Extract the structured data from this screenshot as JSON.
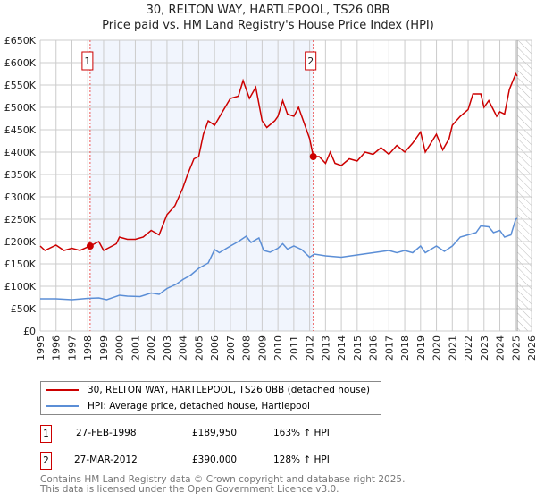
{
  "chart_data": {
    "type": "line",
    "title": "30, RELTON WAY, HARTLEPOOL, TS26 0BB",
    "subtitle": "Price paid vs. HM Land Registry's House Price Index (HPI)",
    "xlim": [
      1995,
      2026
    ],
    "ylim": [
      0,
      650000
    ],
    "y_ticks": [
      {
        "v": 0,
        "label": "£0"
      },
      {
        "v": 50000,
        "label": "£50K"
      },
      {
        "v": 100000,
        "label": "£100K"
      },
      {
        "v": 150000,
        "label": "£150K"
      },
      {
        "v": 200000,
        "label": "£200K"
      },
      {
        "v": 250000,
        "label": "£250K"
      },
      {
        "v": 300000,
        "label": "£300K"
      },
      {
        "v": 350000,
        "label": "£350K"
      },
      {
        "v": 400000,
        "label": "£400K"
      },
      {
        "v": 450000,
        "label": "£450K"
      },
      {
        "v": 500000,
        "label": "£500K"
      },
      {
        "v": 550000,
        "label": "£550K"
      },
      {
        "v": 600000,
        "label": "£600K"
      },
      {
        "v": 650000,
        "label": "£650K"
      }
    ],
    "x_ticks": [
      "1995",
      "1996",
      "1997",
      "1998",
      "1999",
      "2000",
      "2001",
      "2002",
      "2003",
      "2004",
      "2005",
      "2006",
      "2007",
      "2008",
      "2009",
      "2010",
      "2011",
      "2012",
      "2013",
      "2014",
      "2015",
      "2016",
      "2017",
      "2018",
      "2019",
      "2020",
      "2021",
      "2022",
      "2023",
      "2024",
      "2025",
      "2026"
    ],
    "grid": true,
    "shaded_range": [
      1998.15,
      2012.23
    ],
    "forecast_hatch_from": 2025.1,
    "series": [
      {
        "name": "30, RELTON WAY, HARTLEPOOL, TS26 0BB (detached house)",
        "color": "#cc0000",
        "x": [
          1995,
          1995.3,
          1996,
          1996.5,
          1997,
          1997.5,
          1998.15,
          1998.7,
          1999,
          1999.8,
          2000,
          2000.5,
          2001,
          2001.5,
          2002,
          2002.5,
          2003,
          2003.5,
          2004,
          2004.3,
          2004.7,
          2005,
          2005.3,
          2005.6,
          2006,
          2006.5,
          2007,
          2007.5,
          2007.8,
          2008.2,
          2008.6,
          2009,
          2009.3,
          2009.8,
          2010,
          2010.3,
          2010.6,
          2011,
          2011.3,
          2011.7,
          2012,
          2012.23,
          2012.6,
          2013,
          2013.3,
          2013.6,
          2014,
          2014.5,
          2015,
          2015.5,
          2016,
          2016.5,
          2017,
          2017.5,
          2018,
          2018.5,
          2019,
          2019.3,
          2020,
          2020.4,
          2020.8,
          2021,
          2021.5,
          2022,
          2022.3,
          2022.8,
          2023,
          2023.3,
          2023.8,
          2024,
          2024.3,
          2024.6,
          2025,
          2025.1
        ],
        "y": [
          190000,
          180000,
          192000,
          180000,
          185000,
          180000,
          189950,
          200000,
          180000,
          195000,
          210000,
          205000,
          205000,
          210000,
          225000,
          215000,
          260000,
          280000,
          320000,
          350000,
          385000,
          390000,
          440000,
          470000,
          460000,
          490000,
          520000,
          525000,
          560000,
          520000,
          545000,
          470000,
          455000,
          470000,
          480000,
          515000,
          485000,
          480000,
          500000,
          460000,
          430000,
          390000,
          390000,
          375000,
          400000,
          375000,
          370000,
          385000,
          380000,
          400000,
          395000,
          410000,
          395000,
          415000,
          400000,
          420000,
          445000,
          400000,
          440000,
          405000,
          430000,
          460000,
          480000,
          495000,
          530000,
          530000,
          500000,
          515000,
          480000,
          490000,
          485000,
          540000,
          575000,
          570000
        ]
      },
      {
        "name": "HPI: Average price, detached house, Hartlepool",
        "color": "#5b8ed6",
        "x": [
          1995,
          1996,
          1997,
          1998,
          1998.7,
          1999.2,
          2000,
          2000.5,
          2001.3,
          2002,
          2002.5,
          2003,
          2003.6,
          2004,
          2004.5,
          2005,
          2005.6,
          2006,
          2006.3,
          2007,
          2007.5,
          2008,
          2008.3,
          2008.8,
          2009.1,
          2009.5,
          2010,
          2010.3,
          2010.6,
          2011,
          2011.5,
          2012,
          2012.3,
          2013,
          2014,
          2015,
          2016,
          2017,
          2017.5,
          2018,
          2018.5,
          2019,
          2019.3,
          2020,
          2020.5,
          2021,
          2021.5,
          2022,
          2022.5,
          2022.8,
          2023.3,
          2023.6,
          2024,
          2024.3,
          2024.7,
          2025,
          2025.1
        ],
        "y": [
          72000,
          72000,
          70000,
          73000,
          74000,
          70000,
          80000,
          78000,
          77000,
          85000,
          82000,
          95000,
          105000,
          115000,
          125000,
          140000,
          152000,
          182000,
          175000,
          190000,
          200000,
          212000,
          198000,
          208000,
          180000,
          176000,
          185000,
          195000,
          183000,
          190000,
          182000,
          165000,
          172000,
          168000,
          165000,
          170000,
          175000,
          180000,
          175000,
          180000,
          175000,
          190000,
          175000,
          190000,
          178000,
          190000,
          210000,
          215000,
          220000,
          235000,
          233000,
          220000,
          225000,
          210000,
          215000,
          250000,
          252000
        ]
      }
    ],
    "annotations": [
      {
        "label": "1",
        "x": 1998.15,
        "y": 189950
      },
      {
        "label": "2",
        "x": 2012.23,
        "y": 390000
      }
    ]
  },
  "legend": {
    "items": [
      {
        "label": "30, RELTON WAY, HARTLEPOOL, TS26 0BB (detached house)",
        "color": "#cc0000"
      },
      {
        "label": "HPI: Average price, detached house, Hartlepool",
        "color": "#5b8ed6"
      }
    ]
  },
  "transactions": [
    {
      "num": "1",
      "date": "27-FEB-1998",
      "price": "£189,950",
      "hpi": "163% ↑ HPI"
    },
    {
      "num": "2",
      "date": "27-MAR-2012",
      "price": "£390,000",
      "hpi": "128% ↑ HPI"
    }
  ],
  "footer": {
    "line1": "Contains HM Land Registry data © Crown copyright and database right 2025.",
    "line2": "This data is licensed under the Open Government Licence v3.0."
  }
}
